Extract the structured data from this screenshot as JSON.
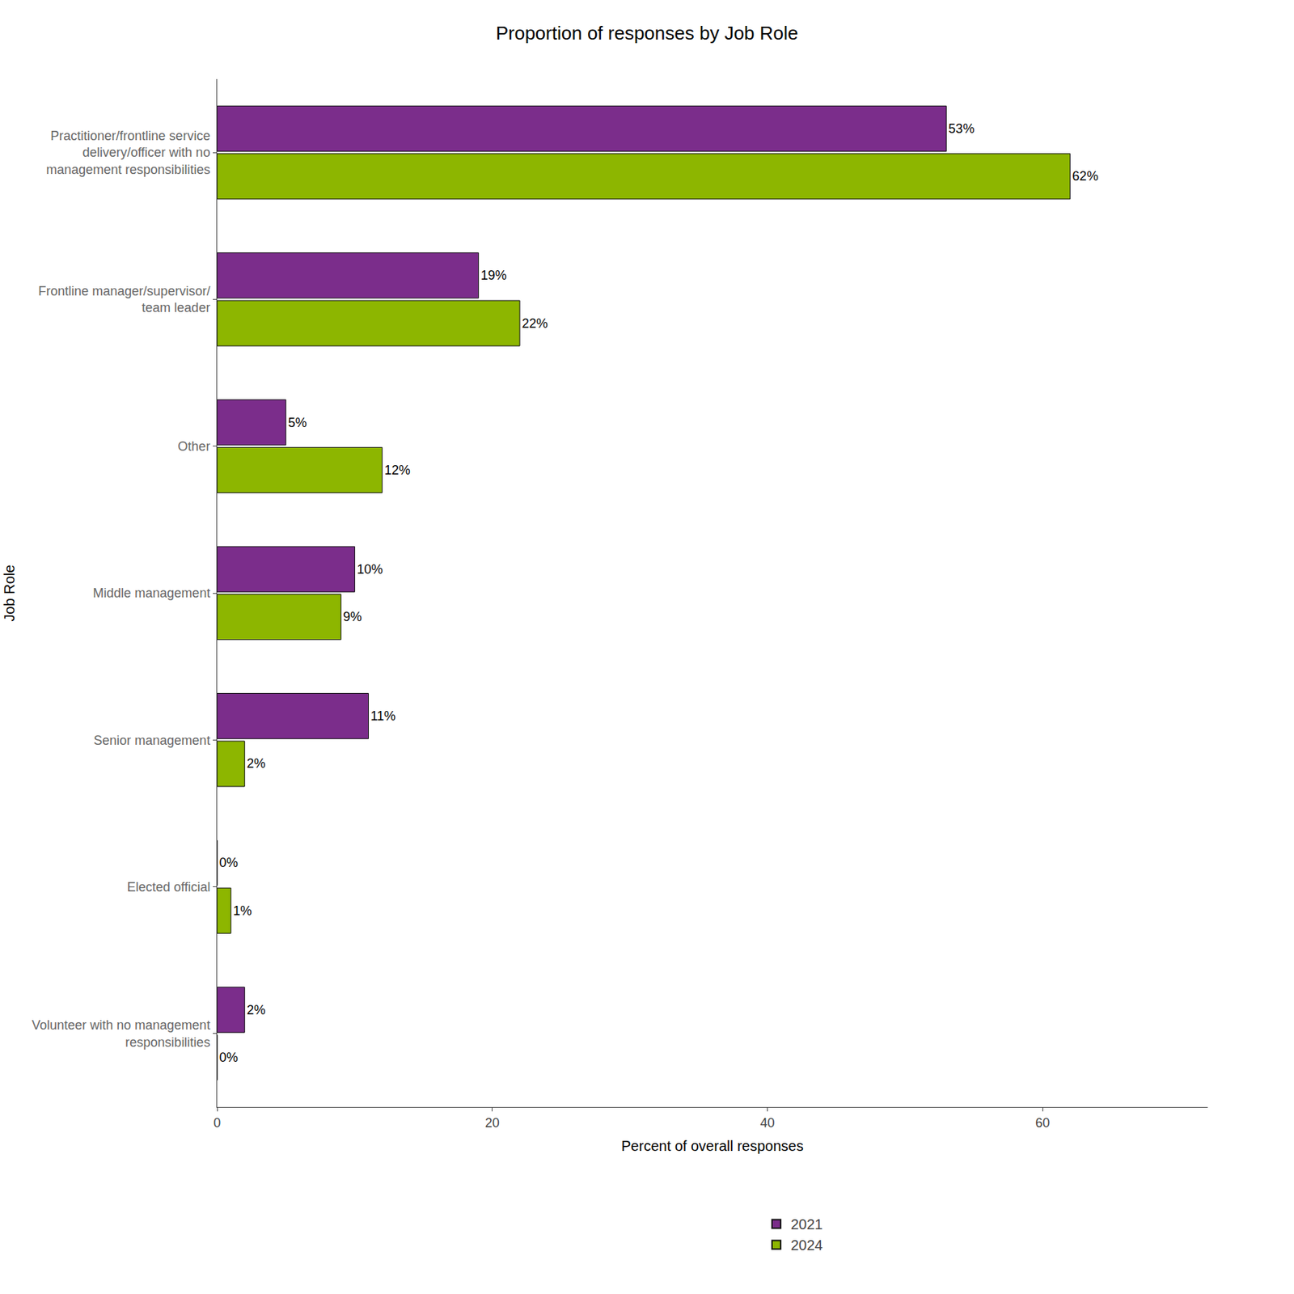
{
  "chart_data": {
    "type": "bar",
    "orientation": "horizontal",
    "title": "Proportion of responses by Job Role",
    "xlabel": "Percent of overall responses",
    "ylabel": "Job Role",
    "categories": [
      "Practitioner/frontline service\ndelivery/officer with no\nmanagement responsibilities",
      "Frontline manager/supervisor/\nteam leader",
      "Other",
      "Middle management",
      "Senior management",
      "Elected official",
      "Volunteer with no management\nresponsibilities"
    ],
    "series": [
      {
        "name": "2021",
        "color": "#7B2D8B",
        "values": [
          53,
          19,
          5,
          10,
          11,
          0,
          2
        ],
        "value_labels": [
          "53%",
          "19%",
          "5%",
          "10%",
          "11%",
          "0%",
          "2%"
        ]
      },
      {
        "name": "2024",
        "color": "#8DB600",
        "values": [
          62,
          22,
          12,
          9,
          2,
          1,
          0
        ],
        "value_labels": [
          "62%",
          "22%",
          "12%",
          "9%",
          "2%",
          "1%",
          "0%"
        ]
      }
    ],
    "data_labels": true,
    "xlim": [
      0,
      72
    ],
    "xticks": [
      0,
      20,
      40,
      60
    ],
    "grid": false,
    "legend": "bottom"
  }
}
